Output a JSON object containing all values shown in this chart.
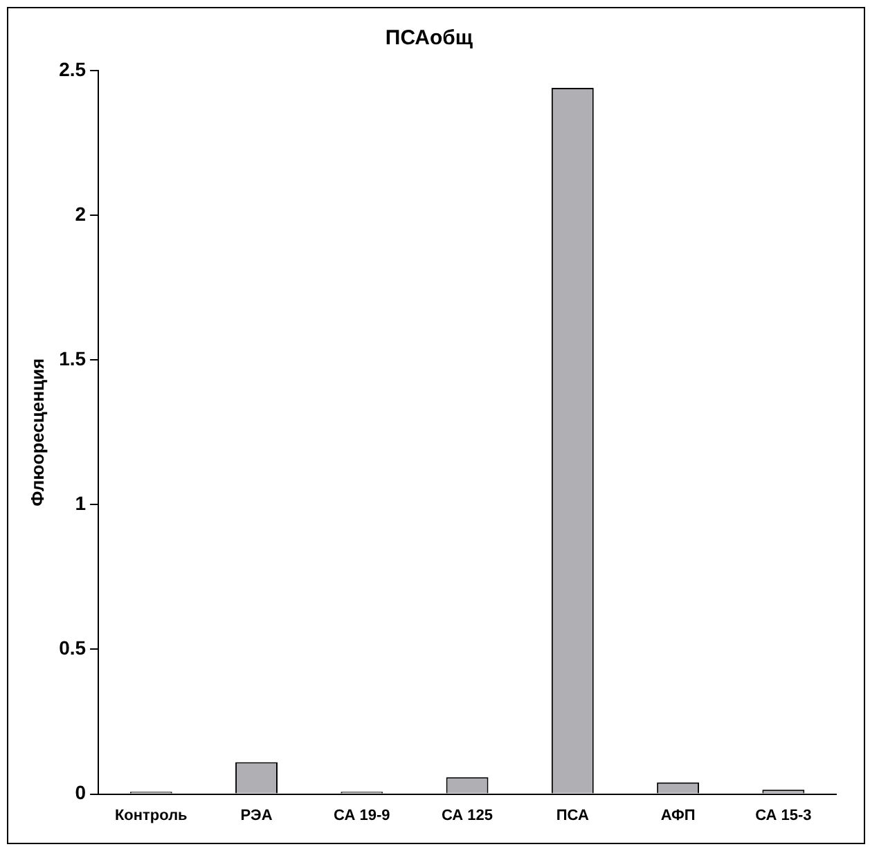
{
  "chart_data": {
    "type": "bar",
    "title": "ПСАобщ",
    "ylabel": "Флюоресценция",
    "categories": [
      "Контроль",
      "РЭА",
      "СА 19-9",
      "СА 125",
      "ПСА",
      "АФП",
      "СА 15-3"
    ],
    "values": [
      0.008,
      0.11,
      0.008,
      0.058,
      2.44,
      0.04,
      0.015
    ],
    "color": "#b0b0b4",
    "ylim": [
      0,
      2.5
    ],
    "yticks": [
      0,
      0.5,
      1,
      1.5,
      2,
      2.5
    ],
    "grid": false,
    "legend": false
  }
}
